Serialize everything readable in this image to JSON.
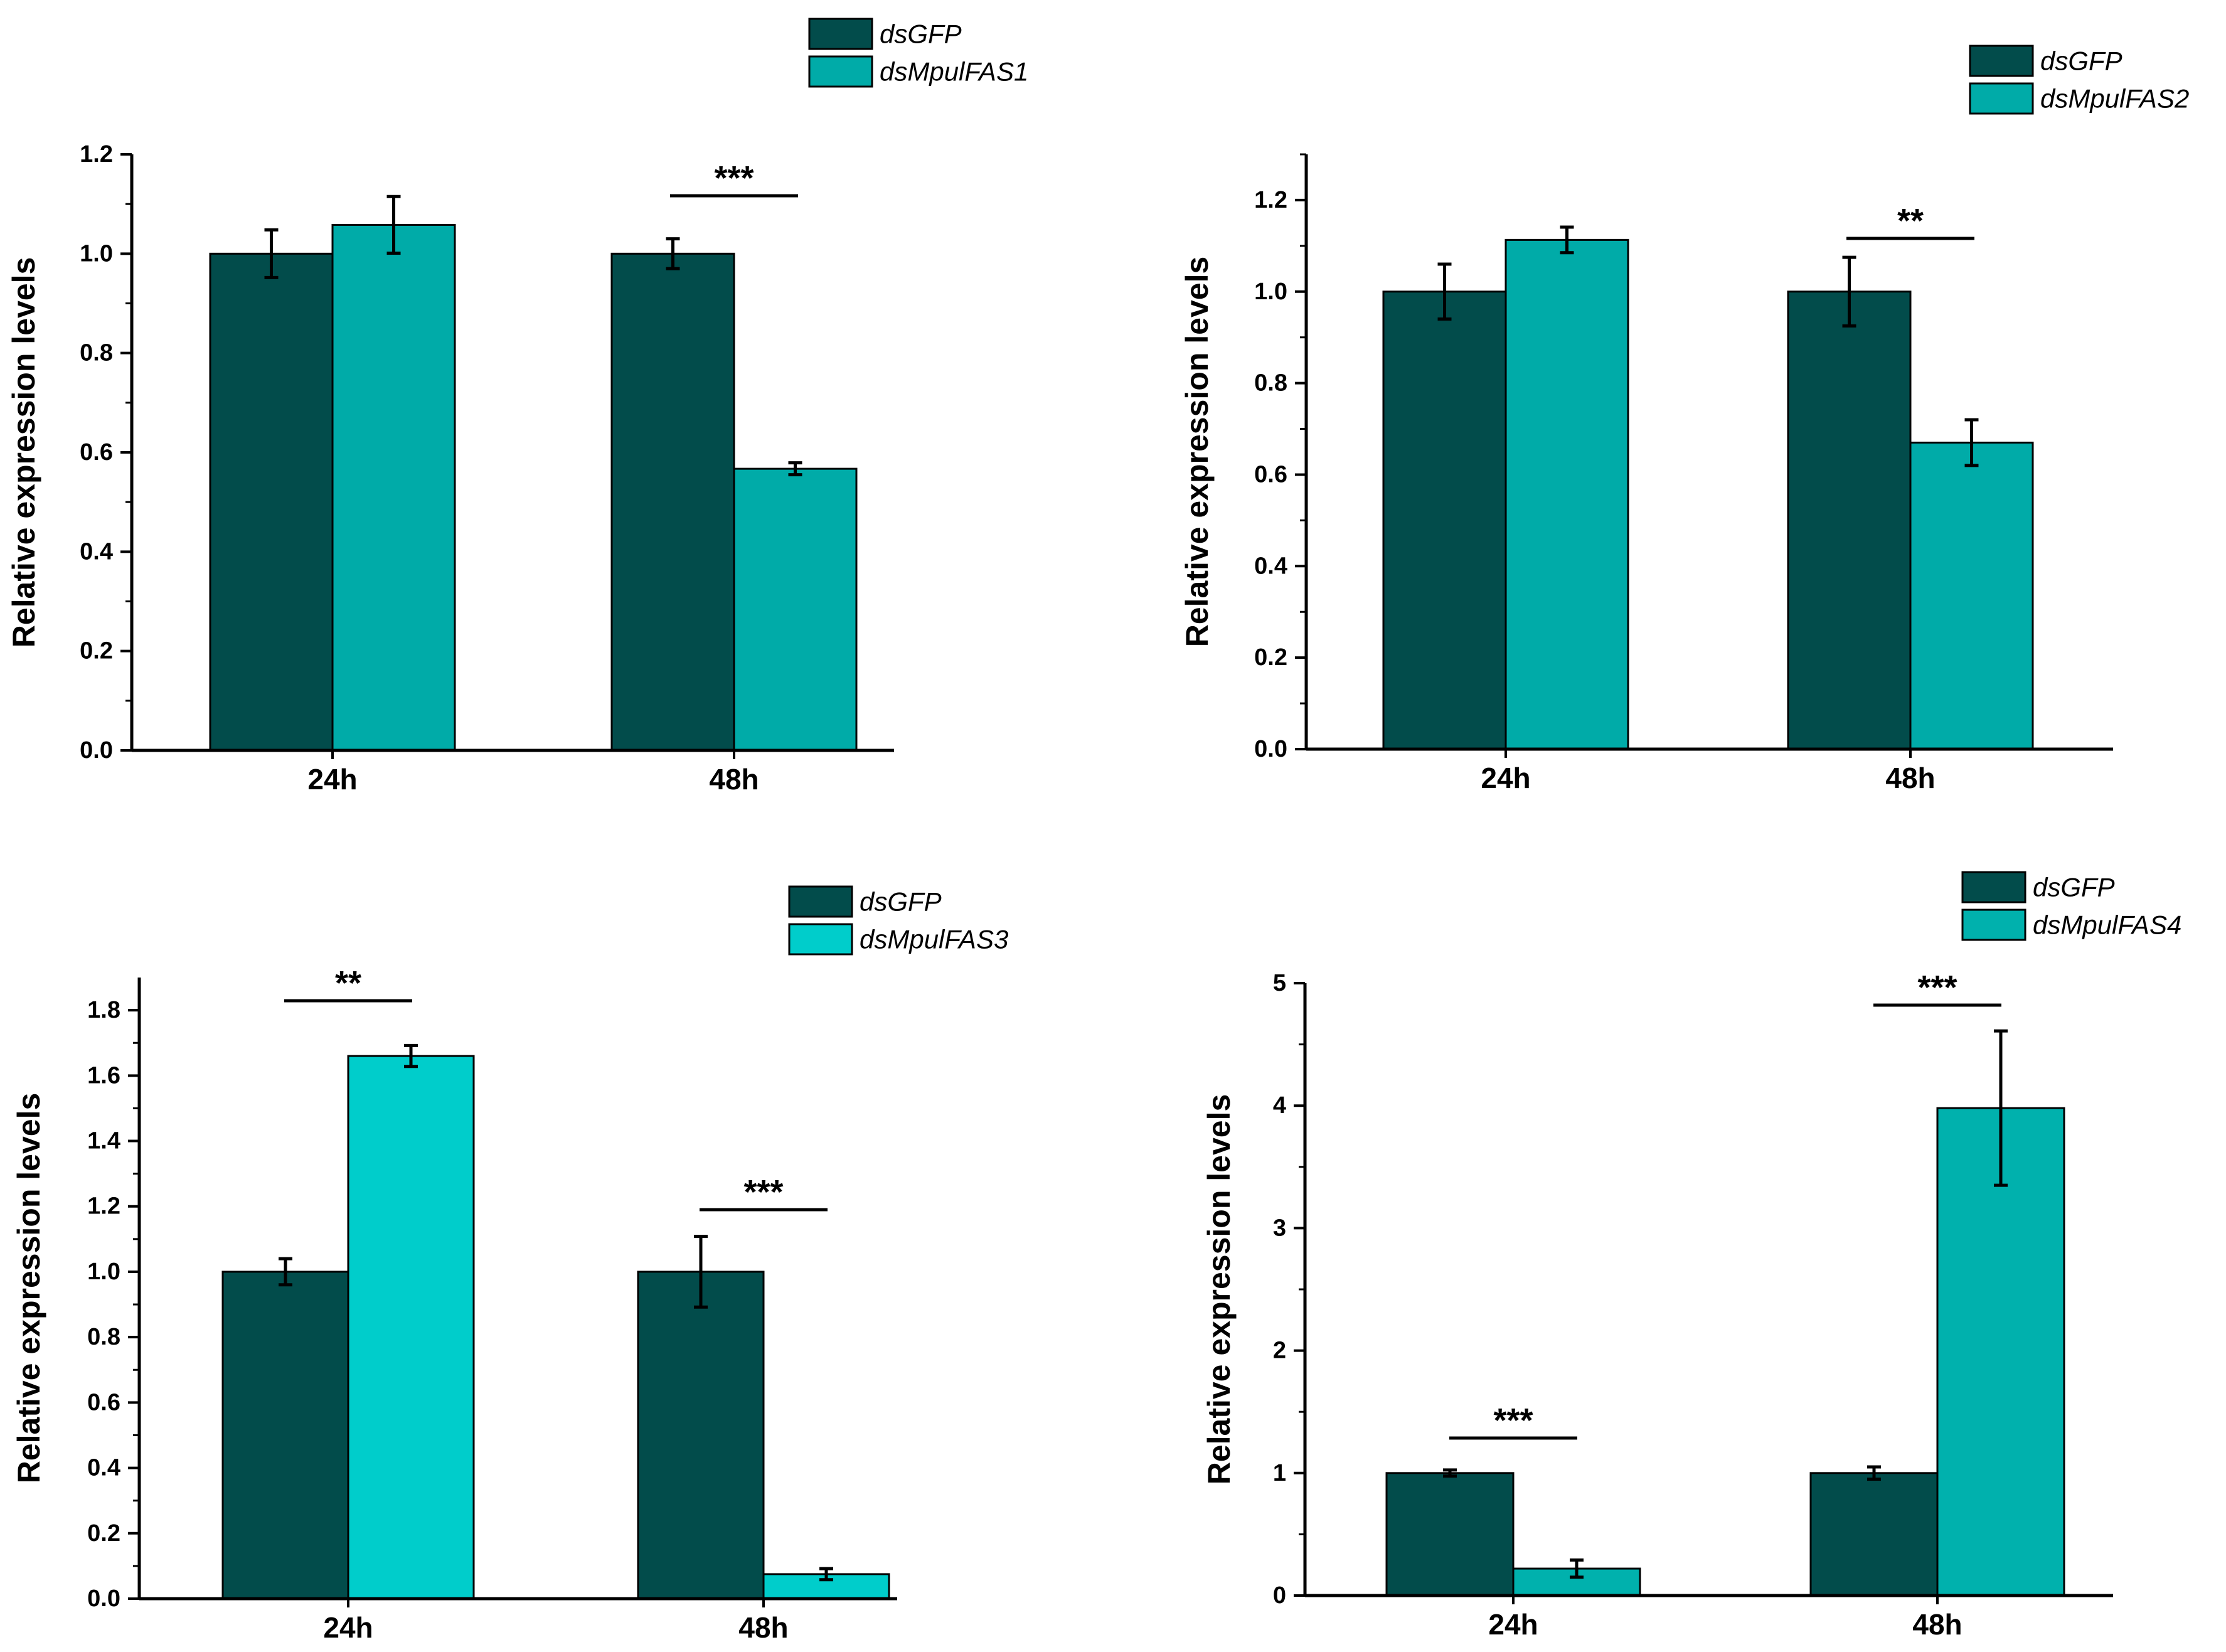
{
  "chart_data": [
    {
      "type": "bar",
      "panel": "top-left",
      "categories": [
        "24h",
        "48h"
      ],
      "ylabel": "Relative expression levels",
      "ylim": [
        0,
        1.2
      ],
      "yticks": [
        "0.0",
        "0.2",
        "0.4",
        "0.6",
        "0.8",
        "1.0",
        "1.2"
      ],
      "series": [
        {
          "name": "dsGFP",
          "color": "#024c4b",
          "values": [
            1.0,
            1.0
          ],
          "errors": [
            0.048,
            0.03
          ]
        },
        {
          "name": "dsMpulFAS1",
          "color": "#00aba8",
          "values": [
            1.058,
            0.567
          ],
          "errors": [
            0.057,
            0.012
          ]
        }
      ],
      "significance": [
        {
          "category": "48h",
          "label": "***"
        }
      ],
      "legend_position": "top-center"
    },
    {
      "type": "bar",
      "panel": "top-right",
      "categories": [
        "24h",
        "48h"
      ],
      "ylabel": "Relative expression levels",
      "ylim": [
        0,
        1.3
      ],
      "yticks": [
        "0.0",
        "0.2",
        "0.4",
        "0.6",
        "0.8",
        "1.0",
        "1.2"
      ],
      "series": [
        {
          "name": "dsGFP",
          "color": "#024c4b",
          "values": [
            1.0,
            1.0
          ],
          "errors": [
            0.06,
            0.075
          ]
        },
        {
          "name": "dsMpulFAS2",
          "color": "#00aba8",
          "values": [
            1.113,
            0.67
          ],
          "errors": [
            0.028,
            0.05
          ]
        }
      ],
      "significance": [
        {
          "category": "48h",
          "label": "**"
        }
      ],
      "legend_position": "top-right"
    },
    {
      "type": "bar",
      "panel": "bottom-left",
      "categories": [
        "24h",
        "48h"
      ],
      "ylabel": "Relative expression levels",
      "ylim": [
        0,
        1.9
      ],
      "yticks": [
        "0.0",
        "0.2",
        "0.4",
        "0.6",
        "0.8",
        "1.0",
        "1.2",
        "1.4",
        "1.6",
        "1.8"
      ],
      "series": [
        {
          "name": "dsGFP",
          "color": "#024c4b",
          "values": [
            1.0,
            1.0
          ],
          "errors": [
            0.04,
            0.108
          ]
        },
        {
          "name": "dsMpulFAS3",
          "color": "#00cdcb",
          "values": [
            1.66,
            0.075
          ],
          "errors": [
            0.032,
            0.017
          ]
        }
      ],
      "significance": [
        {
          "category": "24h",
          "label": "**"
        },
        {
          "category": "48h",
          "label": "***"
        }
      ],
      "legend_position": "top-right"
    },
    {
      "type": "bar",
      "panel": "bottom-right",
      "categories": [
        "24h",
        "48h"
      ],
      "ylabel": "Relative expression levels",
      "ylim": [
        0,
        5
      ],
      "yticks": [
        "0",
        "1",
        "2",
        "3",
        "4",
        "5"
      ],
      "series": [
        {
          "name": "dsGFP",
          "color": "#024c4b",
          "values": [
            1.0,
            1.0
          ],
          "errors": [
            0.025,
            0.05
          ]
        },
        {
          "name": "dsMpulFAS4",
          "color": "#00b1ad",
          "values": [
            0.22,
            3.98
          ],
          "errors": [
            0.07,
            0.63
          ]
        }
      ],
      "significance": [
        {
          "category": "24h",
          "label": "***"
        },
        {
          "category": "48h",
          "label": "***"
        }
      ],
      "legend_position": "top-right"
    }
  ]
}
